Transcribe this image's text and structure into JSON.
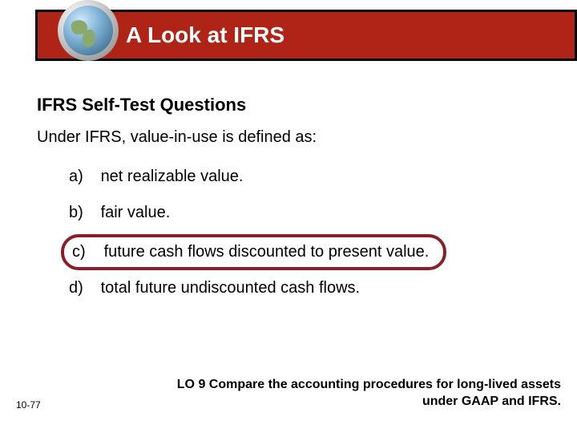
{
  "header": {
    "title": "A Look at IFRS",
    "title_color": "#ffffff",
    "bar_color": "#b02418",
    "bar_border_color": "#000000",
    "title_fontsize": 28
  },
  "content": {
    "subtitle": "IFRS Self-Test Questions",
    "question": "Under IFRS, value-in-use is defined as:",
    "options": [
      {
        "letter": "a)",
        "text": "net realizable value."
      },
      {
        "letter": "b)",
        "text": "fair value."
      },
      {
        "letter": "c)",
        "text": "future cash flows discounted to present value."
      },
      {
        "letter": "d)",
        "text": "total future undiscounted cash flows."
      }
    ],
    "correct_index": 2,
    "correct_outline_color": "#8a1e2a",
    "text_color": "#000000",
    "subtitle_fontsize": 22,
    "body_fontsize": 20
  },
  "footer": {
    "slide_number": "10-77",
    "learning_objective": "LO 9  Compare the accounting procedures for long-lived assets under GAAP and IFRS.",
    "slide_number_fontsize": 12,
    "lo_fontsize": 16
  },
  "globe": {
    "ocean_colors": [
      "#cfe8ff",
      "#7fb3d5",
      "#2d5a7a"
    ],
    "land_color": "#8aa96b",
    "ring_colors": [
      "#ffffff",
      "#d6d6d6",
      "#9a9a9a"
    ]
  },
  "background_color": "#ffffff"
}
